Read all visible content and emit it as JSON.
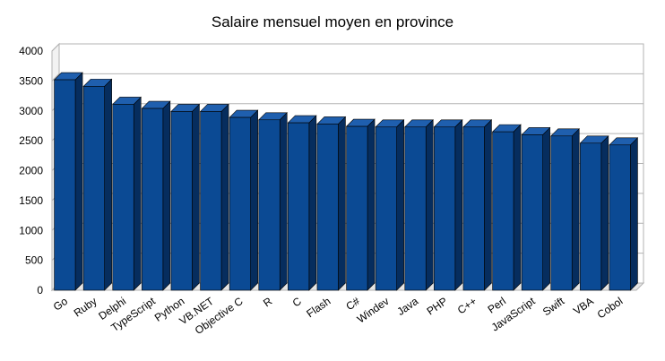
{
  "chart_data": {
    "type": "bar",
    "title": "Salaire mensuel moyen en province",
    "xlabel": "",
    "ylabel": "",
    "ylim": [
      0,
      4000
    ],
    "yticks": [
      0,
      500,
      1000,
      1500,
      2000,
      2500,
      3000,
      3500,
      4000
    ],
    "grid": true,
    "legend": "none",
    "bar_color": "#0b4a94",
    "bar_side_color": "#062d5e",
    "bar_top_color": "#1f5fae",
    "categories": [
      "Go",
      "Ruby",
      "Delphi",
      "TypeScript",
      "Python",
      "VB.NET",
      "Objective C",
      "R",
      "C",
      "Flash",
      "C#",
      "Windev",
      "Java",
      "PHP",
      "C++",
      "Perl",
      "JavaScript",
      "Swift",
      "VBA",
      "Cobol"
    ],
    "values": [
      3520,
      3410,
      3110,
      3040,
      2990,
      2990,
      2890,
      2850,
      2800,
      2780,
      2740,
      2730,
      2730,
      2730,
      2730,
      2650,
      2600,
      2580,
      2460,
      2430
    ]
  }
}
